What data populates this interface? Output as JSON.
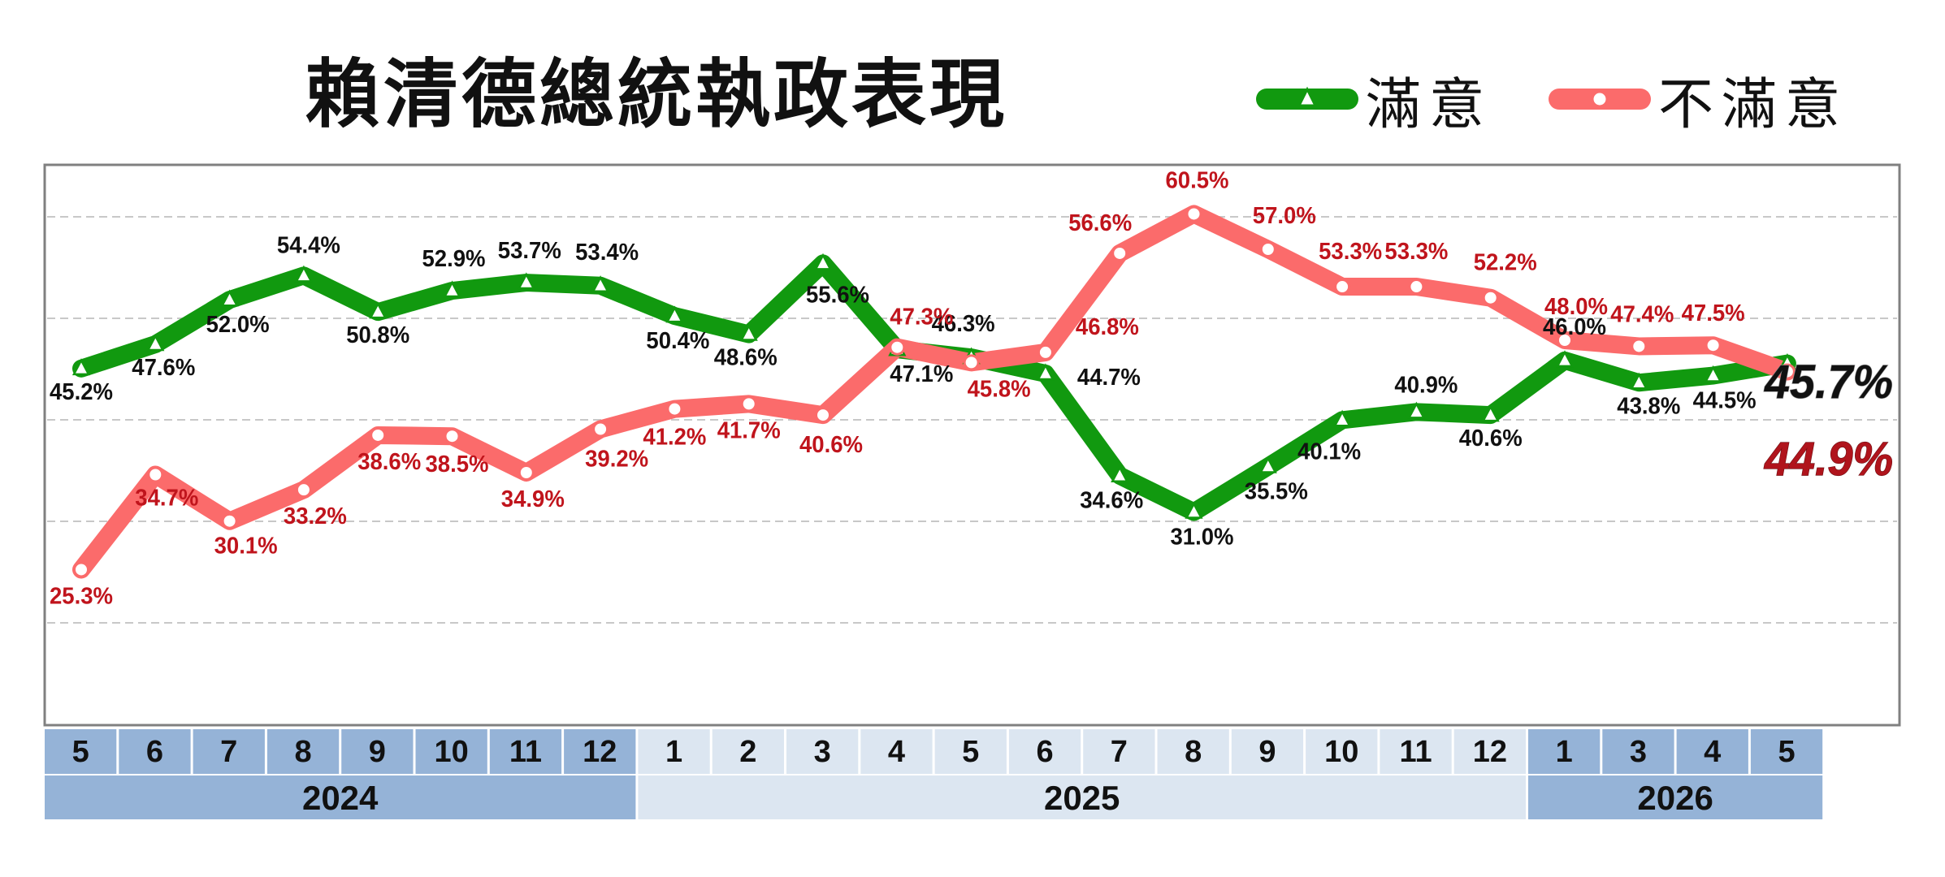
{
  "chart_data": {
    "type": "line",
    "title": "賴清德總統執政表現",
    "xlabel": "",
    "ylabel": "",
    "ylim": [
      20,
      65
    ],
    "grid": true,
    "legend_placement": "top-right",
    "categories": [
      "5",
      "6",
      "7",
      "8",
      "9",
      "10",
      "11",
      "12",
      "1",
      "2",
      "3",
      "4",
      "5",
      "6",
      "7",
      "8",
      "9",
      "10",
      "11",
      "12",
      "1",
      "3",
      "4",
      "5"
    ],
    "year_groups": [
      {
        "label": "2024",
        "count": 8
      },
      {
        "label": "2025",
        "count": 12
      },
      {
        "label": "2026",
        "count": 4
      }
    ],
    "series": [
      {
        "name": "滿意",
        "color": "#11990f",
        "marker": "triangle",
        "values": [
          45.2,
          47.6,
          52.0,
          54.4,
          50.8,
          52.9,
          53.7,
          53.4,
          50.4,
          48.6,
          55.6,
          47.1,
          46.3,
          44.7,
          34.6,
          31.0,
          35.5,
          40.1,
          40.9,
          40.6,
          46.0,
          43.8,
          44.5,
          45.7
        ],
        "labels": [
          "45.2%",
          "47.6%",
          "52.0%",
          "54.4%",
          "50.8%",
          "52.9%",
          "53.7%",
          "53.4%",
          "50.4%",
          "48.6%",
          "55.6%",
          "47.1%",
          "46.3%",
          "44.7%",
          "34.6%",
          "31.0%",
          "35.5%",
          "40.1%",
          "40.9%",
          "40.6%",
          "46.0%",
          "43.8%",
          "44.5%",
          "45.7%"
        ]
      },
      {
        "name": "不滿意",
        "color": "#fb6b6b",
        "marker": "circle",
        "values": [
          25.3,
          34.7,
          30.1,
          33.2,
          38.6,
          38.5,
          34.9,
          39.2,
          41.2,
          41.7,
          40.6,
          47.3,
          45.8,
          46.8,
          56.6,
          60.5,
          57.0,
          53.3,
          53.3,
          52.2,
          48.0,
          47.4,
          47.5,
          44.9
        ],
        "labels": [
          "25.3%",
          "34.7%",
          "30.1%",
          "33.2%",
          "38.6%",
          "38.5%",
          "34.9%",
          "39.2%",
          "41.2%",
          "41.7%",
          "40.6%",
          "47.3%",
          "45.8%",
          "46.8%",
          "56.6%",
          "60.5%",
          "57.0%",
          "53.3%",
          "53.3%",
          "52.2%",
          "48.0%",
          "47.4%",
          "47.5%",
          "44.9%"
        ]
      }
    ]
  },
  "colors": {
    "label_satisfied": "#111111",
    "label_dissatisfied": "#c0141c",
    "final_satisfied": "#111111",
    "final_dissatisfied": "#b0141c",
    "cell_blue": "#95b3d7",
    "cell_light": "#dce6f1",
    "grid": "#c8c8c8",
    "frame": "#808080"
  }
}
